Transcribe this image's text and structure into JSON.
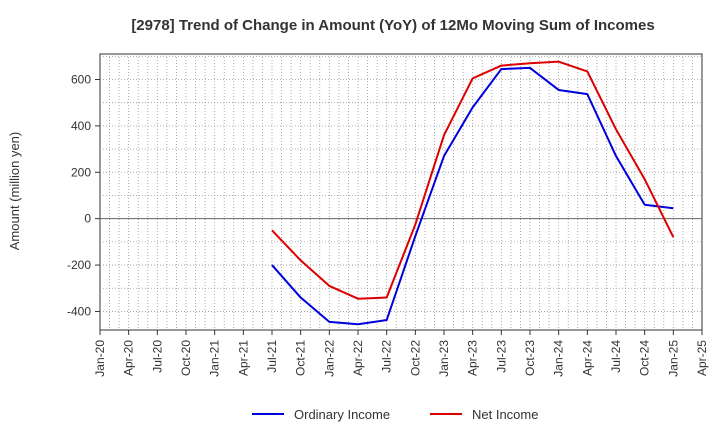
{
  "chart_data": {
    "type": "line",
    "title": "[2978]  Trend of Change in Amount (YoY) of 12Mo Moving Sum of Incomes",
    "ylabel": "Amount (million yen)",
    "xlabel": "",
    "ylim": [
      -480,
      710
    ],
    "yticks": [
      -400,
      -200,
      0,
      200,
      400,
      600
    ],
    "ytick_labels": [
      "-400",
      "-200",
      "0",
      "200",
      "400",
      "600"
    ],
    "x_tick_labels": [
      "Jan-20",
      "Apr-20",
      "Jul-20",
      "Oct-20",
      "Jan-21",
      "Apr-21",
      "Jul-21",
      "Oct-21",
      "Jan-22",
      "Apr-22",
      "Jul-22",
      "Oct-22",
      "Jan-23",
      "Apr-23",
      "Jul-23",
      "Oct-23",
      "Jan-24",
      "Apr-24",
      "Jul-24",
      "Oct-24",
      "Jan-25",
      "Apr-25"
    ],
    "grid": true,
    "legend_position": "bottom",
    "series": [
      {
        "name": "Ordinary Income",
        "color": "#0000dd",
        "x": [
          "Jul-21",
          "Oct-21",
          "Jan-22",
          "Apr-22",
          "Jul-22",
          "Oct-22",
          "Jan-23",
          "Apr-23",
          "Jul-23",
          "Oct-23",
          "Jan-24",
          "Apr-24",
          "Jul-24",
          "Oct-24",
          "Jan-25"
        ],
        "values": [
          -200,
          -340,
          -445,
          -455,
          -437,
          -75,
          270,
          480,
          645,
          650,
          555,
          537,
          270,
          60,
          45
        ]
      },
      {
        "name": "Net Income",
        "color": "#dd0000",
        "x": [
          "Jul-21",
          "Oct-21",
          "Jan-22",
          "Apr-22",
          "Jul-22",
          "Oct-22",
          "Jan-23",
          "Apr-23",
          "Jul-23",
          "Oct-23",
          "Jan-24",
          "Apr-24",
          "Jul-24",
          "Oct-24",
          "Jan-25"
        ],
        "values": [
          -50,
          -180,
          -290,
          -345,
          -340,
          -25,
          360,
          605,
          660,
          670,
          677,
          635,
          385,
          170,
          -80
        ]
      }
    ]
  }
}
